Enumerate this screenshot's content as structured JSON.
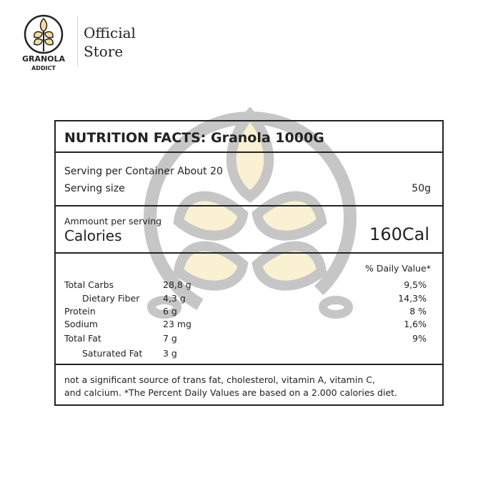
{
  "header": {
    "brand_line1": "GRANOLA",
    "brand_line2": "ADDICT",
    "store_line1": "Official",
    "store_line2": "Store",
    "accent": "#e8c86a"
  },
  "facts": {
    "title": "NUTRITION FACTS: Granola 1000G",
    "serving_per_container": "Serving per Container About 20",
    "serving_size_label": "Serving size",
    "serving_size_value": "50g",
    "amount_label": "Ammount per serving",
    "calories_label": "Calories",
    "calories_value": "160Cal",
    "dv_header": "% Daily Value*",
    "rows": [
      {
        "name": "Total Carbs",
        "amount": "28,8 g",
        "dv": "9,5%"
      },
      {
        "name": "Dietary Fiber",
        "amount": "4,3 g",
        "dv": "14,3%"
      },
      {
        "name": "Protein",
        "amount": "6 g",
        "dv": "8 %"
      },
      {
        "name": "Sodium",
        "amount": "23 mg",
        "dv": "1,6%"
      },
      {
        "name": "Total Fat",
        "amount": "7 g",
        "dv": "9%"
      },
      {
        "name": "Saturated Fat",
        "amount": "3 g",
        "dv": ""
      }
    ],
    "footnote_line1": "not a significant source of trans fat, cholesterol, vitamin A, vitamin C,",
    "footnote_line2": "and calcium. *The Percent Daily Values are based on a 2.000 calories diet."
  }
}
